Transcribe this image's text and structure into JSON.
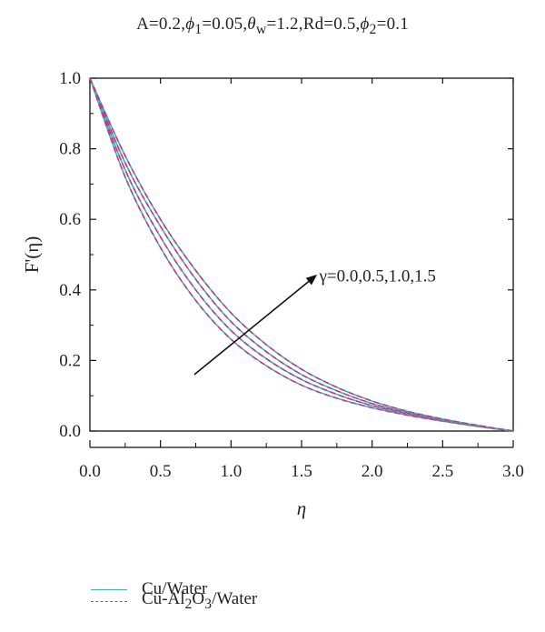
{
  "chart_data": {
    "type": "line",
    "title_parts": [
      "A=0.2,",
      "ϕ",
      "1",
      "=0.05,",
      "θ",
      "w",
      "=1.2,Rd=0.5,",
      "ϕ",
      "2",
      "=0.1"
    ],
    "xlabel": "η",
    "ylabel": "F'(η)",
    "xlim": [
      0.0,
      3.0
    ],
    "ylim": [
      0.0,
      1.0
    ],
    "xticks": [
      "0.0",
      "0.5",
      "1.0",
      "1.5",
      "2.0",
      "2.5",
      "3.0"
    ],
    "yticks": [
      "0.0",
      "0.2",
      "0.4",
      "0.6",
      "0.8",
      "1.0"
    ],
    "grid": false,
    "annotation": "γ=0.0,0.5,1.0,1.5",
    "x": [
      0.0,
      0.25,
      0.5,
      0.75,
      1.0,
      1.25,
      1.5,
      1.75,
      2.0,
      2.25,
      2.5,
      2.75,
      3.0
    ],
    "curves": [
      {
        "gamma": "0.0",
        "y": [
          1.0,
          0.72,
          0.52,
          0.37,
          0.26,
          0.185,
          0.13,
          0.093,
          0.066,
          0.045,
          0.028,
          0.013,
          0.0
        ]
      },
      {
        "gamma": "0.5",
        "y": [
          1.0,
          0.74,
          0.55,
          0.4,
          0.285,
          0.205,
          0.146,
          0.104,
          0.072,
          0.049,
          0.03,
          0.014,
          0.0
        ]
      },
      {
        "gamma": "1.0",
        "y": [
          1.0,
          0.76,
          0.58,
          0.43,
          0.31,
          0.225,
          0.16,
          0.114,
          0.078,
          0.052,
          0.032,
          0.015,
          0.0
        ]
      },
      {
        "gamma": "1.5",
        "y": [
          1.0,
          0.78,
          0.6,
          0.455,
          0.335,
          0.245,
          0.175,
          0.124,
          0.085,
          0.056,
          0.034,
          0.016,
          0.0
        ]
      }
    ],
    "series": [
      {
        "name": "Cu/Water",
        "style": "solid",
        "color": "#3fb6b0"
      },
      {
        "name": "Cu-Al2O3/Water",
        "name_parts": [
          "Cu-Al",
          "2",
          "O",
          "3",
          "/Water"
        ],
        "style": "dashed",
        "color": "#c0398f"
      }
    ],
    "arrow": {
      "from": [
        0.74,
        0.16
      ],
      "to": [
        1.6,
        0.44
      ]
    }
  }
}
